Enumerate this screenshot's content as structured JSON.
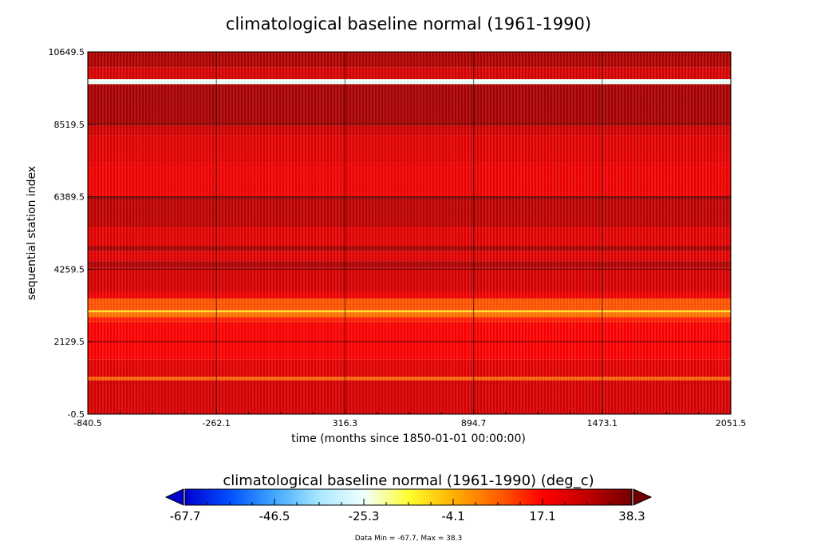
{
  "chart_data": {
    "type": "heatmap",
    "title": "climatological baseline normal (1961-1990)",
    "xlabel": "time (months since 1850-01-01 00:00:00)",
    "ylabel": "sequential station index",
    "xlim": [
      -840.5,
      2051.5
    ],
    "ylim": [
      -0.5,
      10649.5
    ],
    "x_ticks": [
      "-840.5",
      "-262.1",
      "316.3",
      "894.7",
      "1473.1",
      "2051.5"
    ],
    "x_tick_values": [
      -840.5,
      -262.1,
      316.3,
      894.7,
      1473.1,
      2051.5
    ],
    "y_ticks": [
      "-0.5",
      "2129.5",
      "4259.5",
      "6389.5",
      "8519.5",
      "10649.5"
    ],
    "y_tick_values": [
      -0.5,
      2129.5,
      4259.5,
      6389.5,
      8519.5,
      10649.5
    ],
    "grid": true,
    "pattern_note_free": true,
    "bands": [
      {
        "y0": -0.5,
        "y1": 1000,
        "value": 24
      },
      {
        "y0": 1000,
        "y1": 1100,
        "value": 6
      },
      {
        "y0": 1100,
        "y1": 1600,
        "value": 22
      },
      {
        "y0": 1600,
        "y1": 2700,
        "value": 18
      },
      {
        "y0": 2700,
        "y1": 2850,
        "value": 14
      },
      {
        "y0": 2850,
        "y1": 3000,
        "value": 4
      },
      {
        "y0": 3000,
        "y1": 3050,
        "value": -12
      },
      {
        "y0": 3050,
        "y1": 3400,
        "value": 8
      },
      {
        "y0": 3400,
        "y1": 3600,
        "value": 20
      },
      {
        "y0": 3600,
        "y1": 4300,
        "value": 24
      },
      {
        "y0": 4300,
        "y1": 4500,
        "value": 30
      },
      {
        "y0": 4500,
        "y1": 4800,
        "value": 22
      },
      {
        "y0": 4800,
        "y1": 4950,
        "value": 31
      },
      {
        "y0": 4950,
        "y1": 5500,
        "value": 22
      },
      {
        "y0": 5500,
        "y1": 6300,
        "value": 28
      },
      {
        "y0": 6300,
        "y1": 6400,
        "value": 33
      },
      {
        "y0": 6400,
        "y1": 7400,
        "value": 20
      },
      {
        "y0": 7400,
        "y1": 8200,
        "value": 22
      },
      {
        "y0": 8200,
        "y1": 8500,
        "value": 25
      },
      {
        "y0": 8500,
        "y1": 9700,
        "value": 31
      },
      {
        "y0": 9700,
        "y1": 9850,
        "value": -25
      },
      {
        "y0": 9850,
        "y1": 10200,
        "value": 24
      },
      {
        "y0": 10200,
        "y1": 10649.5,
        "value": 30
      }
    ],
    "colorbar": {
      "title": "climatological baseline normal (1961-1990) (deg_c)",
      "min": -67.7,
      "max": 38.3,
      "ticks": [
        "-67.7",
        "-46.5",
        "-25.3",
        "-4.1",
        "17.1",
        "38.3"
      ],
      "tick_values": [
        -67.7,
        -46.5,
        -25.3,
        -4.1,
        17.1,
        38.3
      ],
      "colors": [
        "#0000d0",
        "#0050ff",
        "#40a8ff",
        "#a8e8ff",
        "#f0ffff",
        "#ffff30",
        "#ffb000",
        "#ff6000",
        "#ff0000",
        "#c00000",
        "#700000"
      ],
      "extend": "both"
    },
    "stats": "Data Min = -67.7, Max = 38.3"
  }
}
